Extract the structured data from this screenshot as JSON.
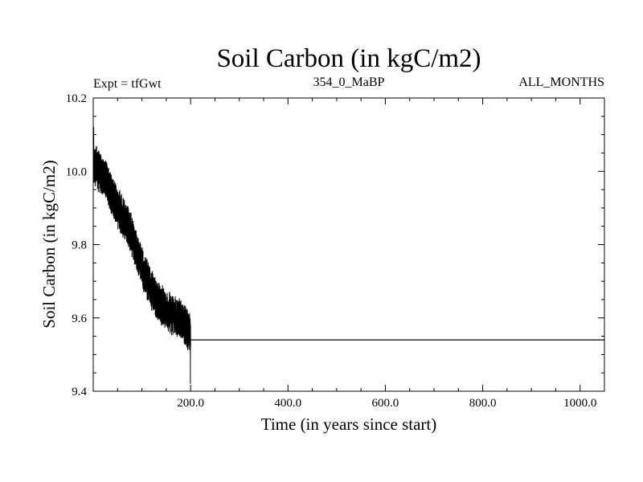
{
  "chart_data": {
    "type": "line",
    "title": "Soil Carbon (in kgC/m2)",
    "subtitle_left": "Expt = tfGwt",
    "subtitle_center": "354_0_MaBP",
    "subtitle_right": "ALL_MONTHS",
    "xlabel": "Time (in years since start)",
    "ylabel": "Soil Carbon (in kgC/m2)",
    "xlim": [
      0,
      1050
    ],
    "ylim": [
      9.4,
      10.2
    ],
    "x_ticks": [
      200,
      400,
      600,
      800,
      1000
    ],
    "x_tick_labels": [
      "200.0",
      "400.0",
      "600.0",
      "800.0",
      "1000.0"
    ],
    "y_ticks": [
      9.4,
      9.6,
      9.8,
      10.0,
      10.2
    ],
    "y_tick_labels": [
      "9.4",
      "9.6",
      "9.8",
      "10.0",
      "10.2"
    ],
    "grid": false,
    "series": [
      {
        "name": "Soil Carbon",
        "color": "#000000",
        "noisy_segment": {
          "x_start": 0,
          "x_end": 200,
          "trend": [
            [
              0,
              10.02
            ],
            [
              25,
              9.98
            ],
            [
              50,
              9.9
            ],
            [
              75,
              9.84
            ],
            [
              100,
              9.74
            ],
            [
              125,
              9.66
            ],
            [
              150,
              9.62
            ],
            [
              175,
              9.6
            ],
            [
              200,
              9.56
            ]
          ],
          "amplitude": 0.05,
          "min_value": 9.42,
          "max_value": 10.12
        },
        "flat_segment": {
          "x_start": 200,
          "x_end": 1050,
          "value": 9.54
        }
      }
    ]
  }
}
